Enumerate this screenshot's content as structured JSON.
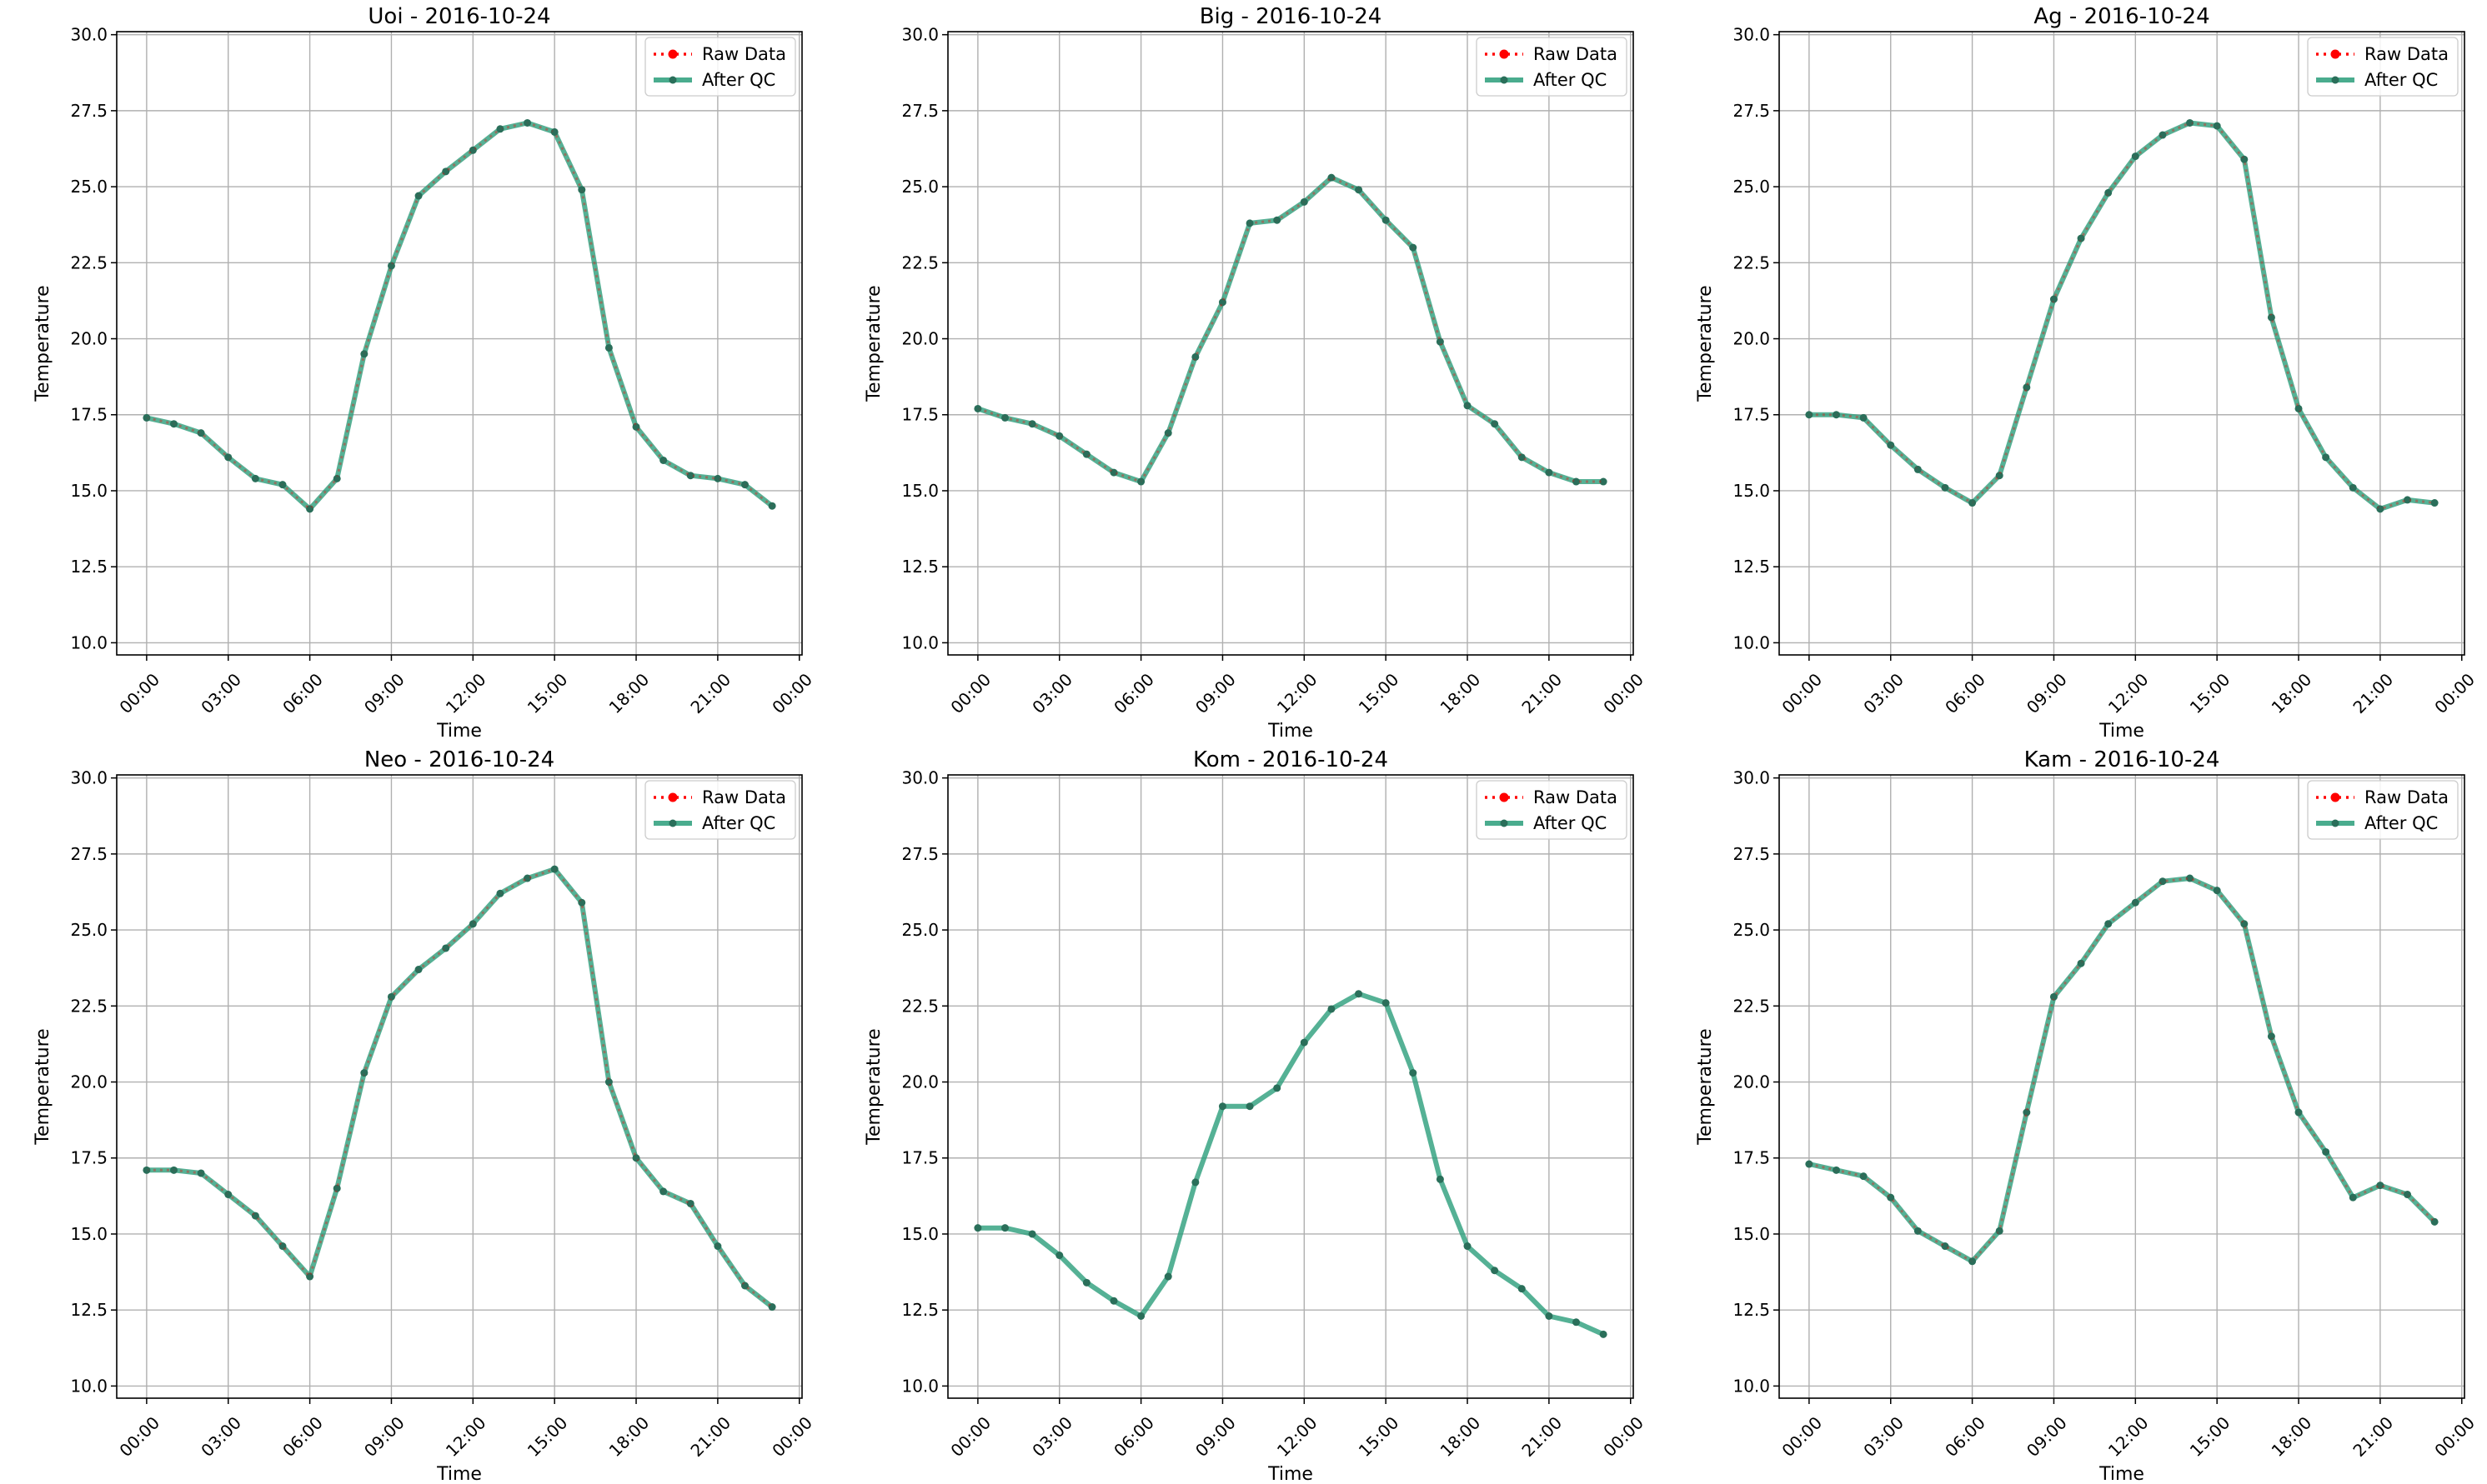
{
  "figure": {
    "colors": {
      "raw": "#ff0000",
      "qc": "#2a9d7a",
      "qc_marker": "#2a6f5a",
      "grid": "#b0b0b0"
    }
  },
  "chart_data": [
    {
      "type": "line",
      "title": "Uoi - 2016-10-24",
      "xlabel": "Time",
      "ylabel": "Temperature",
      "ylim": [
        10.0,
        30.0
      ],
      "yticks": [
        "10.0",
        "12.5",
        "15.0",
        "17.5",
        "20.0",
        "22.5",
        "25.0",
        "27.5",
        "30.0"
      ],
      "xticks": [
        "00:00",
        "03:00",
        "06:00",
        "09:00",
        "12:00",
        "15:00",
        "18:00",
        "21:00",
        "00:00"
      ],
      "legend": [
        "Raw Data",
        "After QC"
      ],
      "legend_position": "top-right",
      "grid": true,
      "series": [
        {
          "name": "Raw Data",
          "style": "dotted",
          "values": [
            17.4,
            17.2,
            16.9,
            16.1,
            15.4,
            15.2,
            14.4,
            15.4,
            19.5,
            22.4,
            24.7,
            25.5,
            26.2,
            26.9,
            27.1,
            26.8,
            24.9,
            19.7,
            17.1,
            16.0,
            15.5,
            15.4,
            15.2,
            14.5
          ]
        },
        {
          "name": "After QC",
          "style": "solid",
          "values": [
            17.4,
            17.2,
            16.9,
            16.1,
            15.4,
            15.2,
            14.4,
            15.4,
            19.5,
            22.4,
            24.7,
            25.5,
            26.2,
            26.9,
            27.1,
            26.8,
            24.9,
            19.7,
            17.1,
            16.0,
            15.5,
            15.4,
            15.2,
            14.5
          ]
        }
      ]
    },
    {
      "type": "line",
      "title": "Big - 2016-10-24",
      "xlabel": "Time",
      "ylabel": "Temperature",
      "ylim": [
        10.0,
        30.0
      ],
      "yticks": [
        "10.0",
        "12.5",
        "15.0",
        "17.5",
        "20.0",
        "22.5",
        "25.0",
        "27.5",
        "30.0"
      ],
      "xticks": [
        "00:00",
        "03:00",
        "06:00",
        "09:00",
        "12:00",
        "15:00",
        "18:00",
        "21:00",
        "00:00"
      ],
      "legend": [
        "Raw Data",
        "After QC"
      ],
      "legend_position": "top-right",
      "grid": true,
      "series": [
        {
          "name": "Raw Data",
          "style": "dotted",
          "values": [
            17.7,
            17.4,
            17.2,
            16.8,
            16.2,
            15.6,
            15.3,
            16.9,
            19.4,
            21.2,
            23.8,
            23.9,
            24.5,
            25.3,
            24.9,
            23.9,
            23.0,
            19.9,
            17.8,
            17.2,
            16.1,
            15.6,
            15.3,
            15.3
          ]
        },
        {
          "name": "After QC",
          "style": "solid",
          "values": [
            17.7,
            17.4,
            17.2,
            16.8,
            16.2,
            15.6,
            15.3,
            16.9,
            19.4,
            21.2,
            23.8,
            23.9,
            24.5,
            25.3,
            24.9,
            23.9,
            23.0,
            19.9,
            17.8,
            17.2,
            16.1,
            15.6,
            15.3,
            15.3
          ]
        }
      ]
    },
    {
      "type": "line",
      "title": "Ag - 2016-10-24",
      "xlabel": "Time",
      "ylabel": "Temperature",
      "ylim": [
        10.0,
        30.0
      ],
      "yticks": [
        "10.0",
        "12.5",
        "15.0",
        "17.5",
        "20.0",
        "22.5",
        "25.0",
        "27.5",
        "30.0"
      ],
      "xticks": [
        "00:00",
        "03:00",
        "06:00",
        "09:00",
        "12:00",
        "15:00",
        "18:00",
        "21:00",
        "00:00"
      ],
      "legend": [
        "Raw Data",
        "After QC"
      ],
      "legend_position": "top-right",
      "grid": true,
      "series": [
        {
          "name": "Raw Data",
          "style": "dotted",
          "values": [
            17.5,
            17.5,
            17.4,
            16.5,
            15.7,
            15.1,
            14.6,
            15.5,
            18.4,
            21.3,
            23.3,
            24.8,
            26.0,
            26.7,
            27.1,
            27.0,
            25.9,
            20.7,
            17.7,
            16.1,
            15.1,
            14.4,
            14.7,
            14.6
          ]
        },
        {
          "name": "After QC",
          "style": "solid",
          "values": [
            17.5,
            17.5,
            17.4,
            16.5,
            15.7,
            15.1,
            14.6,
            15.5,
            18.4,
            21.3,
            23.3,
            24.8,
            26.0,
            26.7,
            27.1,
            27.0,
            25.9,
            20.7,
            17.7,
            16.1,
            15.1,
            14.4,
            14.7,
            14.6
          ]
        }
      ]
    },
    {
      "type": "line",
      "title": "Neo - 2016-10-24",
      "xlabel": "Time",
      "ylabel": "Temperature",
      "ylim": [
        10.0,
        30.0
      ],
      "yticks": [
        "10.0",
        "12.5",
        "15.0",
        "17.5",
        "20.0",
        "22.5",
        "25.0",
        "27.5",
        "30.0"
      ],
      "xticks": [
        "00:00",
        "03:00",
        "06:00",
        "09:00",
        "12:00",
        "15:00",
        "18:00",
        "21:00",
        "00:00"
      ],
      "legend": [
        "Raw Data",
        "After QC"
      ],
      "legend_position": "top-right",
      "grid": true,
      "series": [
        {
          "name": "Raw Data",
          "style": "dotted",
          "values": [
            17.1,
            17.1,
            17.0,
            16.3,
            15.6,
            14.6,
            13.6,
            16.5,
            20.3,
            22.8,
            23.7,
            24.4,
            25.2,
            26.2,
            26.7,
            27.0,
            25.9,
            20.0,
            17.5,
            16.4,
            16.0,
            14.6,
            13.3,
            12.6
          ]
        },
        {
          "name": "After QC",
          "style": "solid",
          "values": [
            17.1,
            17.1,
            17.0,
            16.3,
            15.6,
            14.6,
            13.6,
            16.5,
            20.3,
            22.8,
            23.7,
            24.4,
            25.2,
            26.2,
            26.7,
            27.0,
            25.9,
            20.0,
            17.5,
            16.4,
            16.0,
            14.6,
            13.3,
            12.6
          ]
        }
      ]
    },
    {
      "type": "line",
      "title": "Kom - 2016-10-24",
      "xlabel": "Time",
      "ylabel": "Temperature",
      "ylim": [
        10.0,
        30.0
      ],
      "yticks": [
        "10.0",
        "12.5",
        "15.0",
        "17.5",
        "20.0",
        "22.5",
        "25.0",
        "27.5",
        "30.0"
      ],
      "xticks": [
        "00:00",
        "03:00",
        "06:00",
        "09:00",
        "12:00",
        "15:00",
        "18:00",
        "21:00",
        "00:00"
      ],
      "legend": [
        "Raw Data",
        "After QC"
      ],
      "legend_position": "top-right",
      "grid": true,
      "series": [
        {
          "name": "Raw Data",
          "style": "dotted",
          "values": []
        },
        {
          "name": "After QC",
          "style": "solid",
          "values": [
            15.2,
            15.2,
            15.0,
            14.3,
            13.4,
            12.8,
            12.3,
            13.6,
            16.7,
            19.2,
            19.2,
            19.8,
            21.3,
            22.4,
            22.9,
            22.6,
            20.3,
            16.8,
            14.6,
            13.8,
            13.2,
            12.3,
            12.1,
            11.7
          ]
        }
      ]
    },
    {
      "type": "line",
      "title": "Kam - 2016-10-24",
      "xlabel": "Time",
      "ylabel": "Temperature",
      "ylim": [
        10.0,
        30.0
      ],
      "yticks": [
        "10.0",
        "12.5",
        "15.0",
        "17.5",
        "20.0",
        "22.5",
        "25.0",
        "27.5",
        "30.0"
      ],
      "xticks": [
        "00:00",
        "03:00",
        "06:00",
        "09:00",
        "12:00",
        "15:00",
        "18:00",
        "21:00",
        "00:00"
      ],
      "legend": [
        "Raw Data",
        "After QC"
      ],
      "legend_position": "top-right",
      "grid": true,
      "series": [
        {
          "name": "Raw Data",
          "style": "dotted",
          "values": [
            17.3,
            17.1,
            16.9,
            16.2,
            15.1,
            14.6,
            14.1,
            15.1,
            19.0,
            22.8,
            23.9,
            25.2,
            25.9,
            26.6,
            26.7,
            26.3,
            25.2,
            21.5,
            19.0,
            17.7,
            16.2,
            16.6,
            16.3,
            15.4
          ]
        },
        {
          "name": "After QC",
          "style": "solid",
          "values": [
            17.3,
            17.1,
            16.9,
            16.2,
            15.1,
            14.6,
            14.1,
            15.1,
            19.0,
            22.8,
            23.9,
            25.2,
            25.9,
            26.6,
            26.7,
            26.3,
            25.2,
            21.5,
            19.0,
            17.7,
            16.2,
            16.6,
            16.3,
            15.4
          ]
        }
      ]
    }
  ]
}
